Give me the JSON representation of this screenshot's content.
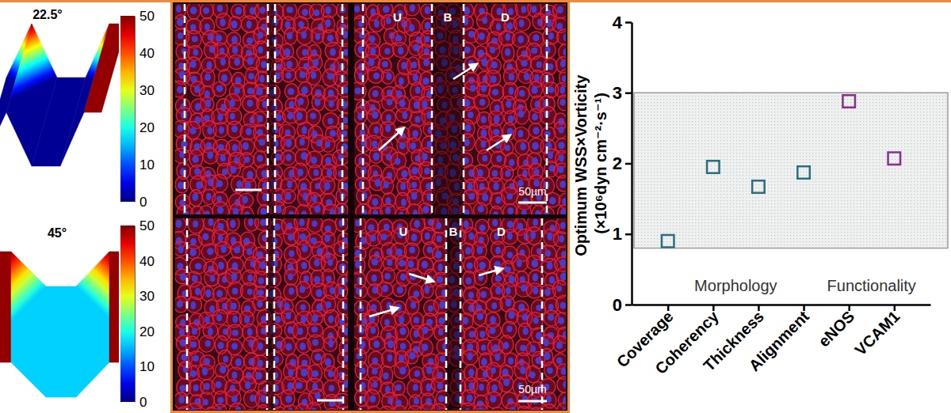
{
  "geometry": [
    {
      "label": "22.5°",
      "colorbar": {
        "range": [
          0,
          50
        ],
        "ticks": [
          0,
          10,
          20,
          30,
          40,
          50
        ]
      }
    },
    {
      "label": "45°",
      "colorbar": {
        "range": [
          0,
          50
        ],
        "ticks": [
          0,
          10,
          20,
          30,
          40,
          50
        ]
      }
    }
  ],
  "micrographs": [
    {
      "region_labels": [
        "U",
        "B",
        "D"
      ],
      "scale_bar": "50µm"
    },
    {
      "region_labels": [
        "U",
        "B",
        "D"
      ],
      "scale_bar": "50µm"
    }
  ],
  "chart_data": {
    "type": "scatter",
    "y_label": "Optimum WSS×Vorticity (×10⁶dyn cm⁻²·s⁻¹)",
    "categories": [
      "Coverage",
      "Coherency",
      "Thickness",
      "Alignment",
      "eNOS",
      "VCAM1"
    ],
    "values": [
      0.9,
      1.95,
      1.67,
      1.87,
      2.88,
      2.07
    ],
    "colors": [
      "#2b6e7e",
      "#2b6e7e",
      "#2b6e7e",
      "#2b6e7e",
      "#8b2f8c",
      "#8b2f8c"
    ],
    "marker": "open-square",
    "ylim": [
      0,
      4
    ],
    "yticks": [
      0,
      1,
      2,
      3,
      4
    ],
    "shaded_range": [
      0.8,
      3.0
    ],
    "annotations": [
      "Morphology",
      "Functionality"
    ]
  }
}
